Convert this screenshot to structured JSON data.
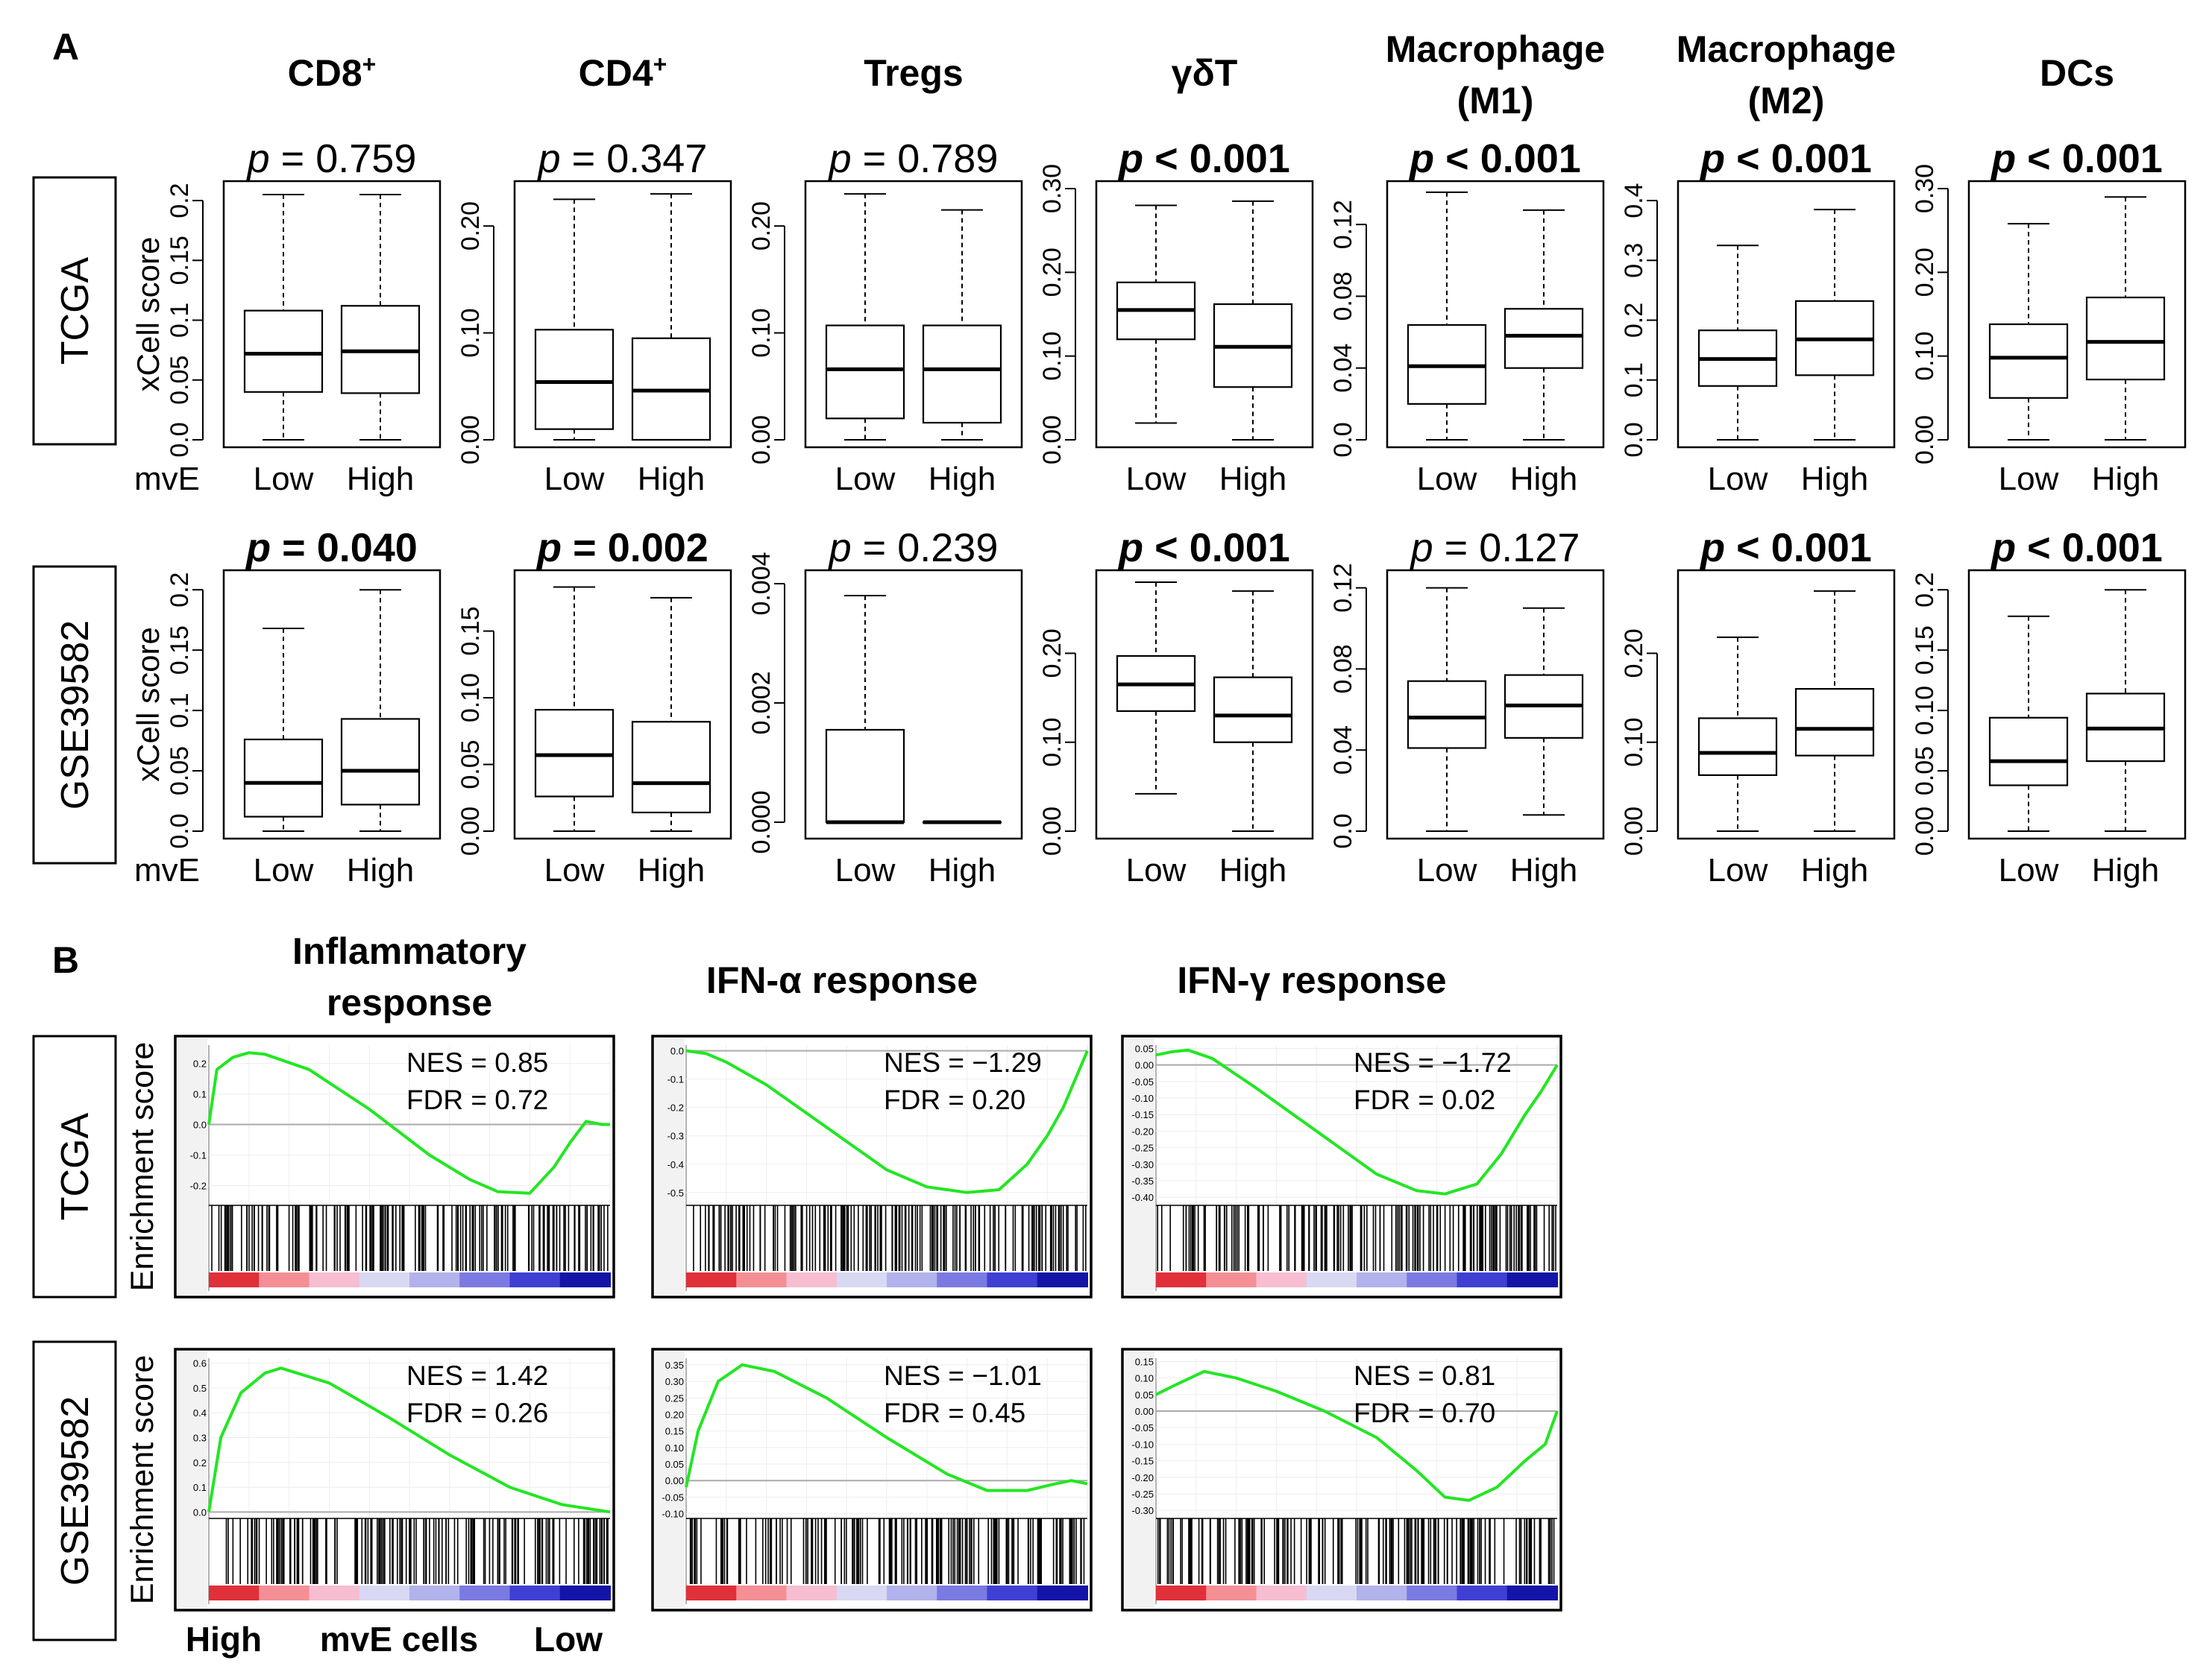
{
  "panel_labels": {
    "a": "A",
    "b": "B"
  },
  "row_labels": {
    "row1": "TCGA",
    "row2": "GSE39582"
  },
  "y_axis_label": "xCell score",
  "group_label": "mvE",
  "group_ticks": [
    "Low",
    "High"
  ],
  "gsea_y_label": "Enrichment score",
  "gsea_x_labels": {
    "left": "High",
    "mid": "mvE cells",
    "right": "Low"
  },
  "colors": {
    "box": "#000000",
    "es_line": "#22e622",
    "hits": "#000000",
    "frame": "#000000"
  },
  "chart_data": [
    {
      "type": "box",
      "id": "cd8",
      "title": "CD8",
      "title_sup": "+",
      "dataset": "TCGA",
      "p_label": "p",
      "p_rest": "= 0.759",
      "bold": false,
      "ylim": [
        0,
        0.21
      ],
      "ticks": [
        "0.0",
        "0.05",
        "0.1",
        "0.15",
        "0.2"
      ],
      "tick_values": [
        0,
        0.05,
        0.1,
        0.15,
        0.2
      ],
      "boxes": [
        {
          "group": "Low",
          "min": 0.0,
          "q1": 0.04,
          "median": 0.072,
          "q3": 0.108,
          "max": 0.205
        },
        {
          "group": "High",
          "min": 0.0,
          "q1": 0.039,
          "median": 0.074,
          "q3": 0.112,
          "max": 0.205
        }
      ]
    },
    {
      "type": "box",
      "id": "cd4",
      "title": "CD4",
      "title_sup": "+",
      "dataset": "TCGA",
      "p_label": "p",
      "p_rest": "= 0.347",
      "bold": false,
      "ylim": [
        0,
        0.235
      ],
      "ticks": [
        "0.00",
        "0.10",
        "0.20"
      ],
      "tick_values": [
        0,
        0.1,
        0.2
      ],
      "boxes": [
        {
          "group": "Low",
          "min": 0.0,
          "q1": 0.01,
          "median": 0.054,
          "q3": 0.103,
          "max": 0.225
        },
        {
          "group": "High",
          "min": 0.0,
          "q1": 0.0,
          "median": 0.046,
          "q3": 0.095,
          "max": 0.23
        }
      ]
    },
    {
      "type": "box",
      "id": "tregs",
      "title": "Tregs",
      "dataset": "TCGA",
      "p_label": "p",
      "p_rest": "= 0.789",
      "bold": false,
      "ylim": [
        0,
        0.235
      ],
      "ticks": [
        "0.00",
        "0.10",
        "0.20"
      ],
      "tick_values": [
        0,
        0.1,
        0.2
      ],
      "boxes": [
        {
          "group": "Low",
          "min": 0.0,
          "q1": 0.02,
          "median": 0.066,
          "q3": 0.107,
          "max": 0.23
        },
        {
          "group": "High",
          "min": 0.0,
          "q1": 0.016,
          "median": 0.066,
          "q3": 0.107,
          "max": 0.215
        }
      ]
    },
    {
      "type": "box",
      "id": "gdt",
      "title": "γδT",
      "dataset": "TCGA",
      "p_label": "p",
      "p_rest": "< 0.001",
      "bold": true,
      "ylim": [
        0,
        0.3
      ],
      "ticks": [
        "0.00",
        "0.10",
        "0.20",
        "0.30"
      ],
      "tick_values": [
        0,
        0.1,
        0.2,
        0.3
      ],
      "boxes": [
        {
          "group": "Low",
          "min": 0.02,
          "q1": 0.12,
          "median": 0.155,
          "q3": 0.188,
          "max": 0.28
        },
        {
          "group": "High",
          "min": 0.0,
          "q1": 0.063,
          "median": 0.111,
          "q3": 0.162,
          "max": 0.285
        }
      ]
    },
    {
      "type": "box",
      "id": "m1",
      "title": "Macrophage",
      "title2": "(M1)",
      "dataset": "TCGA",
      "p_label": "p",
      "p_rest": "< 0.001",
      "bold": true,
      "ylim": [
        0,
        0.14
      ],
      "ticks": [
        "0.0",
        "0.04",
        "0.08",
        "0.12"
      ],
      "tick_values": [
        0,
        0.04,
        0.08,
        0.12
      ],
      "boxes": [
        {
          "group": "Low",
          "min": 0.0,
          "q1": 0.02,
          "median": 0.041,
          "q3": 0.064,
          "max": 0.138
        },
        {
          "group": "High",
          "min": 0.0,
          "q1": 0.04,
          "median": 0.058,
          "q3": 0.073,
          "max": 0.128
        }
      ]
    },
    {
      "type": "box",
      "id": "m2",
      "title": "Macrophage",
      "title2": "(M2)",
      "dataset": "TCGA",
      "p_label": "p",
      "p_rest": "< 0.001",
      "bold": true,
      "ylim": [
        0,
        0.42
      ],
      "ticks": [
        "0.0",
        "0.1",
        "0.2",
        "0.3",
        "0.4"
      ],
      "tick_values": [
        0,
        0.1,
        0.2,
        0.3,
        0.4
      ],
      "boxes": [
        {
          "group": "Low",
          "min": 0.0,
          "q1": 0.09,
          "median": 0.135,
          "q3": 0.183,
          "max": 0.325
        },
        {
          "group": "High",
          "min": 0.0,
          "q1": 0.108,
          "median": 0.168,
          "q3": 0.232,
          "max": 0.385
        }
      ]
    },
    {
      "type": "box",
      "id": "dcs",
      "title": "DCs",
      "dataset": "TCGA",
      "p_label": "p",
      "p_rest": "< 0.001",
      "bold": true,
      "ylim": [
        0,
        0.3
      ],
      "ticks": [
        "0.00",
        "0.10",
        "0.20",
        "0.30"
      ],
      "tick_values": [
        0,
        0.1,
        0.2,
        0.3
      ],
      "boxes": [
        {
          "group": "Low",
          "min": 0.0,
          "q1": 0.05,
          "median": 0.098,
          "q3": 0.138,
          "max": 0.258
        },
        {
          "group": "High",
          "min": 0.0,
          "q1": 0.072,
          "median": 0.117,
          "q3": 0.17,
          "max": 0.29
        }
      ]
    },
    {
      "type": "box",
      "id": "cd8b",
      "dataset": "GSE39582",
      "p_label": "p",
      "p_rest": "= 0.040",
      "bold": true,
      "ylim": [
        0,
        0.21
      ],
      "ticks": [
        "0.0",
        "0.05",
        "0.1",
        "0.15",
        "0.2"
      ],
      "tick_values": [
        0,
        0.05,
        0.1,
        0.15,
        0.2
      ],
      "boxes": [
        {
          "group": "Low",
          "min": 0.0,
          "q1": 0.012,
          "median": 0.04,
          "q3": 0.076,
          "max": 0.168
        },
        {
          "group": "High",
          "min": 0.0,
          "q1": 0.022,
          "median": 0.05,
          "q3": 0.093,
          "max": 0.2
        }
      ]
    },
    {
      "type": "box",
      "id": "cd4b",
      "dataset": "GSE39582",
      "p_label": "p",
      "p_rest": "= 0.002",
      "bold": true,
      "ylim": [
        0,
        0.19
      ],
      "ticks": [
        "0.00",
        "0.05",
        "0.10",
        "0.15"
      ],
      "tick_values": [
        0,
        0.05,
        0.1,
        0.15
      ],
      "boxes": [
        {
          "group": "Low",
          "min": 0.0,
          "q1": 0.026,
          "median": 0.057,
          "q3": 0.091,
          "max": 0.183
        },
        {
          "group": "High",
          "min": 0.0,
          "q1": 0.014,
          "median": 0.036,
          "q3": 0.082,
          "max": 0.175
        }
      ]
    },
    {
      "type": "box",
      "id": "tregsb",
      "dataset": "GSE39582",
      "p_label": "p",
      "p_rest": "= 0.239",
      "bold": false,
      "ylim": [
        -0.00015,
        0.0041
      ],
      "ticks": [
        "0.000",
        "0.002",
        "0.004"
      ],
      "tick_values": [
        0,
        0.002,
        0.004
      ],
      "boxes": [
        {
          "group": "Low",
          "min": 0.0,
          "q1": 0.0,
          "median": 0.0,
          "q3": 0.00155,
          "max": 0.0038
        },
        {
          "group": "High",
          "min": 0.0,
          "q1": 0.0,
          "median": 0.0,
          "q3": 0.0,
          "max": 0.0
        }
      ]
    },
    {
      "type": "box",
      "id": "gdtb",
      "dataset": "GSE39582",
      "p_label": "p",
      "p_rest": "< 0.001",
      "bold": true,
      "ylim": [
        0,
        0.285
      ],
      "ticks": [
        "0.00",
        "0.10",
        "0.20"
      ],
      "tick_values": [
        0,
        0.1,
        0.2
      ],
      "boxes": [
        {
          "group": "Low",
          "min": 0.042,
          "q1": 0.135,
          "median": 0.165,
          "q3": 0.197,
          "max": 0.28
        },
        {
          "group": "High",
          "min": 0.0,
          "q1": 0.1,
          "median": 0.13,
          "q3": 0.173,
          "max": 0.27
        }
      ]
    },
    {
      "type": "box",
      "id": "m1b",
      "dataset": "GSE39582",
      "p_label": "p",
      "p_rest": "= 0.127",
      "bold": false,
      "ylim": [
        0,
        0.125
      ],
      "ticks": [
        "0.0",
        "0.04",
        "0.08",
        "0.12"
      ],
      "tick_values": [
        0,
        0.04,
        0.08,
        0.12
      ],
      "boxes": [
        {
          "group": "Low",
          "min": 0.0,
          "q1": 0.041,
          "median": 0.056,
          "q3": 0.074,
          "max": 0.12
        },
        {
          "group": "High",
          "min": 0.008,
          "q1": 0.046,
          "median": 0.062,
          "q3": 0.077,
          "max": 0.11
        }
      ]
    },
    {
      "type": "box",
      "id": "m2b",
      "dataset": "GSE39582",
      "p_label": "p",
      "p_rest": "< 0.001",
      "bold": true,
      "ylim": [
        0,
        0.285
      ],
      "ticks": [
        "0.00",
        "0.10",
        "0.20"
      ],
      "tick_values": [
        0,
        0.1,
        0.2
      ],
      "boxes": [
        {
          "group": "Low",
          "min": 0.0,
          "q1": 0.063,
          "median": 0.088,
          "q3": 0.127,
          "max": 0.218
        },
        {
          "group": "High",
          "min": 0.0,
          "q1": 0.085,
          "median": 0.115,
          "q3": 0.16,
          "max": 0.27
        }
      ]
    },
    {
      "type": "box",
      "id": "dcsb",
      "dataset": "GSE39582",
      "p_label": "p",
      "p_rest": "< 0.001",
      "bold": true,
      "ylim": [
        0,
        0.21
      ],
      "ticks": [
        "0.00",
        "0.05",
        "0.10",
        "0.15",
        "0.2"
      ],
      "tick_values": [
        0,
        0.05,
        0.1,
        0.15,
        0.2
      ],
      "boxes": [
        {
          "group": "Low",
          "min": 0.0,
          "q1": 0.038,
          "median": 0.058,
          "q3": 0.094,
          "max": 0.178
        },
        {
          "group": "High",
          "min": 0.0,
          "q1": 0.058,
          "median": 0.085,
          "q3": 0.114,
          "max": 0.2
        }
      ]
    },
    {
      "type": "line",
      "id": "g_inf_tcga",
      "title": "Inflammatory",
      "title2": "response",
      "dataset": "TCGA",
      "nes": "NES = 0.85",
      "fdr": "FDR = 0.72",
      "ylim": [
        -0.26,
        0.26
      ],
      "ticks": [
        "0.2",
        "0.1",
        "0.0",
        "-0.1",
        "-0.2"
      ],
      "tick_values": [
        0.2,
        0.1,
        0.0,
        -0.1,
        -0.2
      ],
      "es_points": [
        [
          0,
          0.0
        ],
        [
          0.02,
          0.18
        ],
        [
          0.06,
          0.22
        ],
        [
          0.1,
          0.235
        ],
        [
          0.14,
          0.23
        ],
        [
          0.25,
          0.18
        ],
        [
          0.4,
          0.05
        ],
        [
          0.55,
          -0.1
        ],
        [
          0.65,
          -0.18
        ],
        [
          0.72,
          -0.22
        ],
        [
          0.8,
          -0.225
        ],
        [
          0.86,
          -0.14
        ],
        [
          0.9,
          -0.06
        ],
        [
          0.94,
          0.01
        ],
        [
          0.98,
          0.0
        ],
        [
          1.0,
          0.0
        ]
      ],
      "ranked_colors": [
        "#e0303a",
        "#f48f96",
        "#f7bdd0",
        "#d8d8f2",
        "#b2b2ec",
        "#7a7ae2",
        "#3f3fd4",
        "#1414a8"
      ]
    },
    {
      "type": "line",
      "id": "g_ifna_tcga",
      "title": "IFN-α response",
      "dataset": "TCGA",
      "nes": "NES = −1.29",
      "fdr": "FDR =  0.20",
      "ylim": [
        -0.54,
        0.02
      ],
      "ticks": [
        "0.0",
        "-0.1",
        "-0.2",
        "-0.3",
        "-0.4",
        "-0.5"
      ],
      "tick_values": [
        0,
        -0.1,
        -0.2,
        -0.3,
        -0.4,
        -0.5
      ],
      "es_points": [
        [
          0,
          0.0
        ],
        [
          0.05,
          -0.01
        ],
        [
          0.1,
          -0.04
        ],
        [
          0.2,
          -0.12
        ],
        [
          0.35,
          -0.27
        ],
        [
          0.5,
          -0.42
        ],
        [
          0.6,
          -0.48
        ],
        [
          0.7,
          -0.5
        ],
        [
          0.78,
          -0.49
        ],
        [
          0.85,
          -0.4
        ],
        [
          0.9,
          -0.3
        ],
        [
          0.94,
          -0.2
        ],
        [
          0.97,
          -0.1
        ],
        [
          1.0,
          0.0
        ]
      ],
      "ranked_colors": [
        "#e0303a",
        "#f48f96",
        "#f7bdd0",
        "#d8d8f2",
        "#b2b2ec",
        "#7a7ae2",
        "#3f3fd4",
        "#1414a8"
      ]
    },
    {
      "type": "line",
      "id": "g_ifng_tcga",
      "title": "IFN-γ response",
      "dataset": "TCGA",
      "nes": "NES = −1.72",
      "fdr": "FDR =  0.02",
      "ylim": [
        -0.42,
        0.06
      ],
      "ticks": [
        "0.05",
        "0.00",
        "-0.05",
        "-0.10",
        "-0.15",
        "-0.20",
        "-0.25",
        "-0.30",
        "-0.35",
        "-0.40"
      ],
      "tick_values": [
        0.05,
        0,
        -0.05,
        -0.1,
        -0.15,
        -0.2,
        -0.25,
        -0.3,
        -0.35,
        -0.4
      ],
      "es_points": [
        [
          0,
          0.03
        ],
        [
          0.04,
          0.04
        ],
        [
          0.08,
          0.045
        ],
        [
          0.14,
          0.02
        ],
        [
          0.25,
          -0.07
        ],
        [
          0.4,
          -0.2
        ],
        [
          0.55,
          -0.33
        ],
        [
          0.65,
          -0.38
        ],
        [
          0.72,
          -0.39
        ],
        [
          0.8,
          -0.36
        ],
        [
          0.86,
          -0.27
        ],
        [
          0.92,
          -0.15
        ],
        [
          0.96,
          -0.08
        ],
        [
          1.0,
          0.0
        ]
      ],
      "ranked_colors": [
        "#e0303a",
        "#f48f96",
        "#f7bdd0",
        "#d8d8f2",
        "#b2b2ec",
        "#7a7ae2",
        "#3f3fd4",
        "#1414a8"
      ]
    },
    {
      "type": "line",
      "id": "g_inf_gse",
      "dataset": "GSE39582",
      "nes": "NES = 1.42",
      "fdr": "FDR = 0.26",
      "ylim": [
        -0.02,
        0.62
      ],
      "ticks": [
        "0.6",
        "0.5",
        "0.4",
        "0.3",
        "0.2",
        "0.1",
        "0.0"
      ],
      "tick_values": [
        0.6,
        0.5,
        0.4,
        0.3,
        0.2,
        0.1,
        0.0
      ],
      "es_points": [
        [
          0,
          0.0
        ],
        [
          0.03,
          0.3
        ],
        [
          0.08,
          0.48
        ],
        [
          0.14,
          0.56
        ],
        [
          0.18,
          0.58
        ],
        [
          0.3,
          0.52
        ],
        [
          0.45,
          0.38
        ],
        [
          0.6,
          0.23
        ],
        [
          0.75,
          0.1
        ],
        [
          0.88,
          0.03
        ],
        [
          1.0,
          0.0
        ]
      ],
      "ranked_colors": [
        "#e0303a",
        "#f48f96",
        "#f7bdd0",
        "#d8d8f2",
        "#b2b2ec",
        "#7a7ae2",
        "#3f3fd4",
        "#1414a8"
      ]
    },
    {
      "type": "line",
      "id": "g_ifna_gse",
      "dataset": "GSE39582",
      "nes": "NES = −1.01",
      "fdr": "FDR =  0.45",
      "ylim": [
        -0.11,
        0.37
      ],
      "ticks": [
        "0.35",
        "0.30",
        "0.25",
        "0.20",
        "0.15",
        "0.10",
        "0.05",
        "0.00",
        "-0.05",
        "-0.10"
      ],
      "tick_values": [
        0.35,
        0.3,
        0.25,
        0.2,
        0.15,
        0.1,
        0.05,
        0,
        -0.05,
        -0.1
      ],
      "es_points": [
        [
          0,
          -0.02
        ],
        [
          0.03,
          0.15
        ],
        [
          0.08,
          0.3
        ],
        [
          0.14,
          0.35
        ],
        [
          0.22,
          0.33
        ],
        [
          0.35,
          0.25
        ],
        [
          0.5,
          0.13
        ],
        [
          0.65,
          0.02
        ],
        [
          0.75,
          -0.03
        ],
        [
          0.85,
          -0.03
        ],
        [
          0.92,
          -0.01
        ],
        [
          0.96,
          0.0
        ],
        [
          1.0,
          -0.01
        ]
      ],
      "ranked_colors": [
        "#e0303a",
        "#f48f96",
        "#f7bdd0",
        "#d8d8f2",
        "#b2b2ec",
        "#7a7ae2",
        "#3f3fd4",
        "#1414a8"
      ]
    },
    {
      "type": "line",
      "id": "g_ifng_gse",
      "dataset": "GSE39582",
      "nes": "NES = 0.81",
      "fdr": "FDR = 0.70",
      "ylim": [
        -0.32,
        0.16
      ],
      "ticks": [
        "0.15",
        "0.10",
        "0.05",
        "0.00",
        "-0.05",
        "-0.10",
        "-0.15",
        "-0.20",
        "-0.25",
        "-0.30"
      ],
      "tick_values": [
        0.15,
        0.1,
        0.05,
        0,
        -0.05,
        -0.1,
        -0.15,
        -0.2,
        -0.25,
        -0.3
      ],
      "es_points": [
        [
          0,
          0.05
        ],
        [
          0.05,
          0.08
        ],
        [
          0.12,
          0.12
        ],
        [
          0.2,
          0.1
        ],
        [
          0.3,
          0.06
        ],
        [
          0.42,
          0.0
        ],
        [
          0.55,
          -0.08
        ],
        [
          0.65,
          -0.18
        ],
        [
          0.72,
          -0.26
        ],
        [
          0.78,
          -0.27
        ],
        [
          0.85,
          -0.23
        ],
        [
          0.92,
          -0.15
        ],
        [
          0.97,
          -0.1
        ],
        [
          1.0,
          0.0
        ]
      ],
      "ranked_colors": [
        "#e0303a",
        "#f48f96",
        "#f7bdd0",
        "#d8d8f2",
        "#b2b2ec",
        "#7a7ae2",
        "#3f3fd4",
        "#1414a8"
      ]
    }
  ]
}
